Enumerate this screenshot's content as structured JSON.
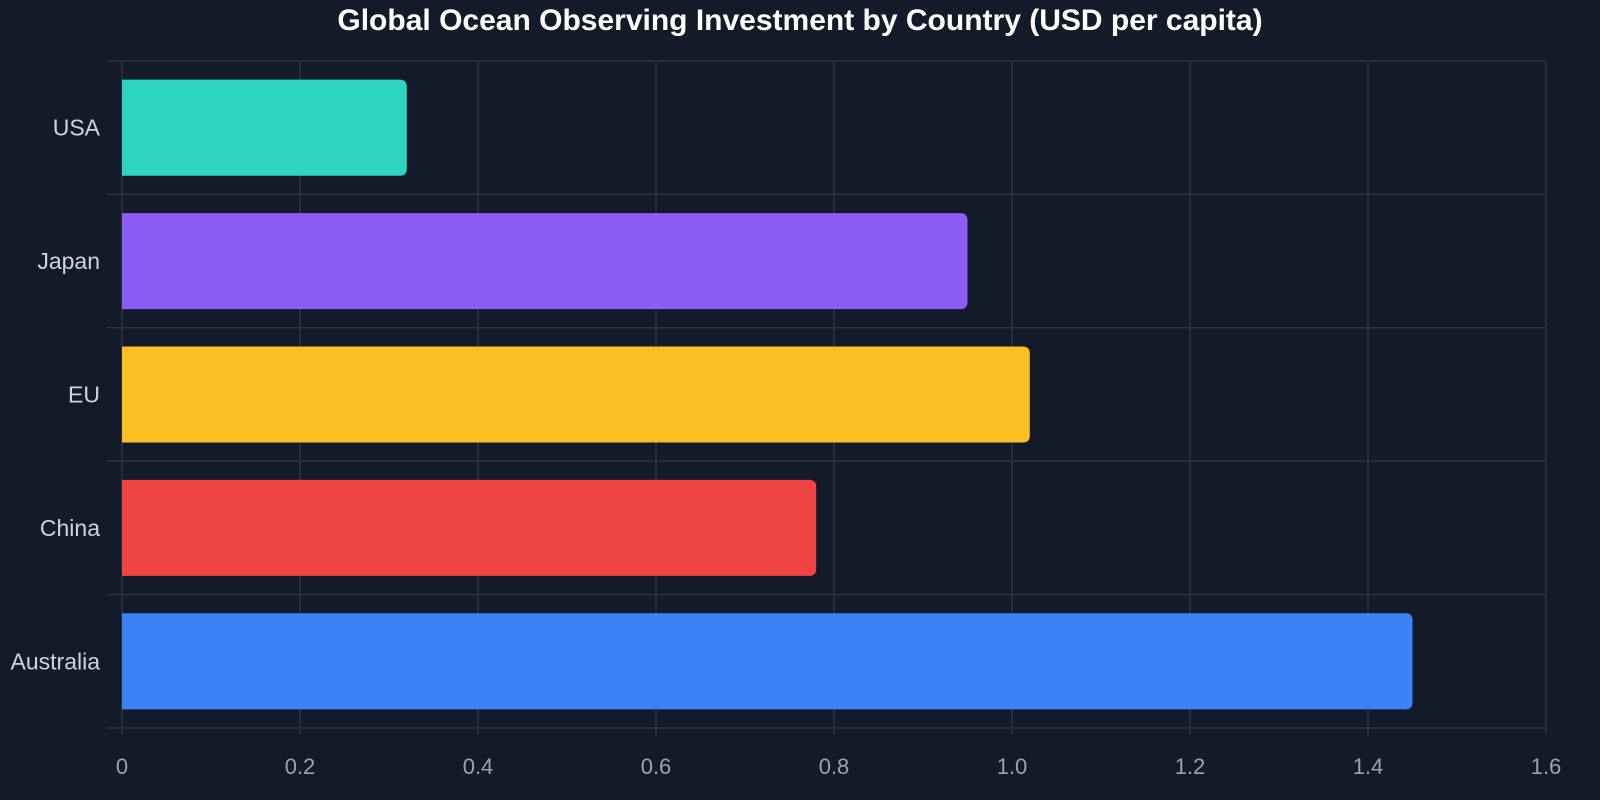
{
  "chart_data": {
    "type": "bar",
    "orientation": "horizontal",
    "title": "Global Ocean Observing Investment by Country (USD per capita)",
    "xlabel": "",
    "ylabel": "",
    "categories": [
      "USA",
      "Japan",
      "EU",
      "China",
      "Australia"
    ],
    "values": [
      0.32,
      0.95,
      1.02,
      0.78,
      1.45
    ],
    "colors": [
      "#2dd4bf",
      "#8b5cf6",
      "#fbbf24",
      "#ef4444",
      "#3b82f6"
    ],
    "xlim": [
      0,
      1.6
    ],
    "xticks": [
      "0",
      "0.2",
      "0.4",
      "0.6",
      "0.8",
      "1.0",
      "1.2",
      "1.4",
      "1.6"
    ],
    "grid": true,
    "legend": "none"
  },
  "colors": {
    "background": "#131a2a",
    "grid": "#2b3344",
    "tick_label": "#9ca3af",
    "category_label": "#d1d5db",
    "title": "#ffffff"
  }
}
